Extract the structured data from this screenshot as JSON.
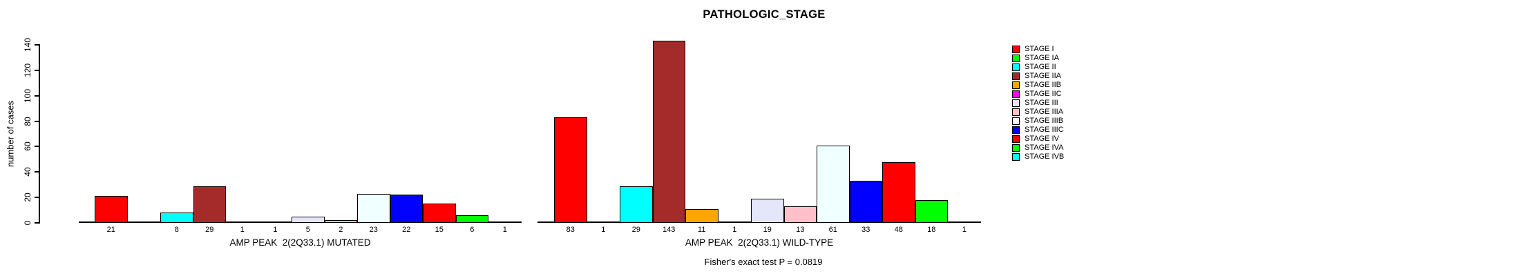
{
  "title": "PATHOLOGIC_STAGE",
  "footer": "Fisher's exact test P = 0.0819",
  "chart_data": {
    "type": "bar",
    "title": "PATHOLOGIC_STAGE",
    "ylabel": "number of cases",
    "ylim": [
      0,
      140
    ],
    "yticks": [
      0,
      20,
      40,
      60,
      80,
      100,
      120,
      140
    ],
    "grid": false,
    "legend_position": "right",
    "categories": [
      "STAGE I",
      "STAGE IA",
      "STAGE II",
      "STAGE IIA",
      "STAGE IIB",
      "STAGE IIC",
      "STAGE III",
      "STAGE IIIA",
      "STAGE IIIB",
      "STAGE IIIC",
      "STAGE IV",
      "STAGE IVA",
      "STAGE IVB"
    ],
    "colors": [
      "#FF0000",
      "#00FF00",
      "#00FFFF",
      "#A52A2A",
      "#FFA500",
      "#FF00FF",
      "#E6E6FA",
      "#FFC0CB",
      "#F0FFFF",
      "#0000FF",
      "#FF0000",
      "#00FF00",
      "#00FFFF"
    ],
    "series": [
      {
        "name": "AMP PEAK  2(2Q33.1) MUTATED",
        "values": [
          21,
          null,
          8,
          29,
          1,
          1,
          5,
          2,
          23,
          22,
          15,
          6,
          1
        ]
      },
      {
        "name": "AMP PEAK  2(2Q33.1) WILD-TYPE",
        "values": [
          83,
          1,
          29,
          143,
          11,
          1,
          19,
          13,
          61,
          33,
          48,
          18,
          1
        ]
      }
    ],
    "annotation": "Fisher's exact test P = 0.0819"
  }
}
